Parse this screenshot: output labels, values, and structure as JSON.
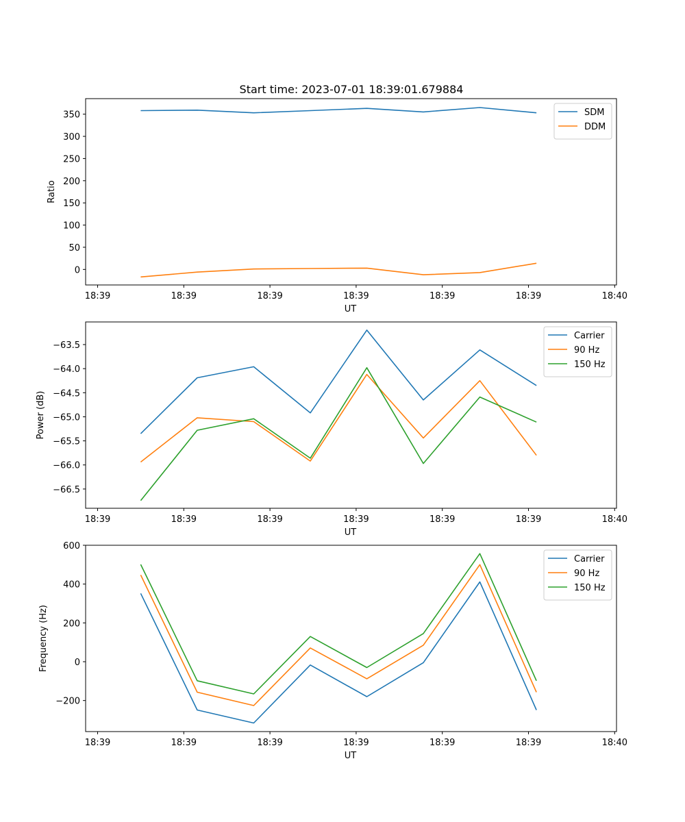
{
  "figure": {
    "title": "Start time: 2023-07-01 18:39:01.679884"
  },
  "chart_data": [
    {
      "type": "line",
      "title": "Start time: 2023-07-01 18:39:01.679884",
      "xlabel": "UT",
      "ylabel": "Ratio",
      "x": [
        0.5,
        1.156,
        1.812,
        2.468,
        3.124,
        3.78,
        4.436,
        5.092
      ],
      "xlim": [
        0,
        6
      ],
      "xticks": [
        0,
        1,
        2,
        3,
        4,
        5,
        6
      ],
      "xtick_labels": [
        "18:39",
        "18:39",
        "18:39",
        "18:39",
        "18:39",
        "18:39",
        "18:40"
      ],
      "ylim": [
        -35,
        385
      ],
      "yticks": [
        0,
        50,
        100,
        150,
        200,
        250,
        300,
        350
      ],
      "ytick_labels": [
        "0",
        "50",
        "100",
        "150",
        "200",
        "250",
        "300",
        "350"
      ],
      "legend_position": "top-right",
      "series": [
        {
          "name": "SDM",
          "color": "#1f77b4",
          "values": [
            358,
            359,
            353,
            358,
            363,
            355,
            365,
            353
          ]
        },
        {
          "name": "DDM",
          "color": "#ff7f0e",
          "values": [
            -17,
            -6,
            1,
            2,
            3,
            -12,
            -7,
            14
          ]
        }
      ]
    },
    {
      "type": "line",
      "title": "",
      "xlabel": "UT",
      "ylabel": "Power (dB)",
      "x": [
        0.5,
        1.156,
        1.812,
        2.468,
        3.124,
        3.78,
        4.436,
        5.092
      ],
      "xlim": [
        0,
        6
      ],
      "xticks": [
        0,
        1,
        2,
        3,
        4,
        5,
        6
      ],
      "xtick_labels": [
        "18:39",
        "18:39",
        "18:39",
        "18:39",
        "18:39",
        "18:39",
        "18:40"
      ],
      "ylim": [
        -66.9,
        -63.03
      ],
      "yticks": [
        -66.5,
        -66.0,
        -65.5,
        -65.0,
        -64.5,
        -64.0,
        -63.5
      ],
      "ytick_labels": [
        "−66.5",
        "−66.0",
        "−65.5",
        "−65.0",
        "−64.5",
        "−64.0",
        "−63.5"
      ],
      "legend_position": "top-right",
      "series": [
        {
          "name": "Carrier",
          "color": "#1f77b4",
          "values": [
            -65.35,
            -64.19,
            -63.96,
            -64.92,
            -63.2,
            -64.65,
            -63.61,
            -64.35
          ]
        },
        {
          "name": "90 Hz",
          "color": "#ff7f0e",
          "values": [
            -65.94,
            -65.02,
            -65.1,
            -65.92,
            -64.12,
            -65.44,
            -64.25,
            -65.8
          ]
        },
        {
          "name": "150 Hz",
          "color": "#2ca02c",
          "values": [
            -66.74,
            -65.28,
            -65.04,
            -65.86,
            -63.98,
            -65.97,
            -64.59,
            -65.11
          ]
        }
      ]
    },
    {
      "type": "line",
      "title": "",
      "xlabel": "UT",
      "ylabel": "Frequency (Hz)",
      "x": [
        0.5,
        1.156,
        1.812,
        2.468,
        3.124,
        3.78,
        4.436,
        5.092
      ],
      "xlim": [
        0,
        6
      ],
      "xticks": [
        0,
        1,
        2,
        3,
        4,
        5,
        6
      ],
      "xtick_labels": [
        "18:39",
        "18:39",
        "18:39",
        "18:39",
        "18:39",
        "18:39",
        "18:40"
      ],
      "ylim": [
        -360,
        600
      ],
      "yticks": [
        -200,
        0,
        200,
        400,
        600
      ],
      "ytick_labels": [
        "−200",
        "0",
        "200",
        "400",
        "600"
      ],
      "legend_position": "top-right",
      "series": [
        {
          "name": "Carrier",
          "color": "#1f77b4",
          "values": [
            352,
            -249,
            -316,
            -17,
            -180,
            -5,
            411,
            -249
          ]
        },
        {
          "name": "90 Hz",
          "color": "#ff7f0e",
          "values": [
            447,
            -157,
            -226,
            71,
            -88,
            85,
            500,
            -157
          ]
        },
        {
          "name": "150 Hz",
          "color": "#2ca02c",
          "values": [
            501,
            -98,
            -166,
            130,
            -30,
            145,
            557,
            -98
          ]
        }
      ]
    }
  ]
}
